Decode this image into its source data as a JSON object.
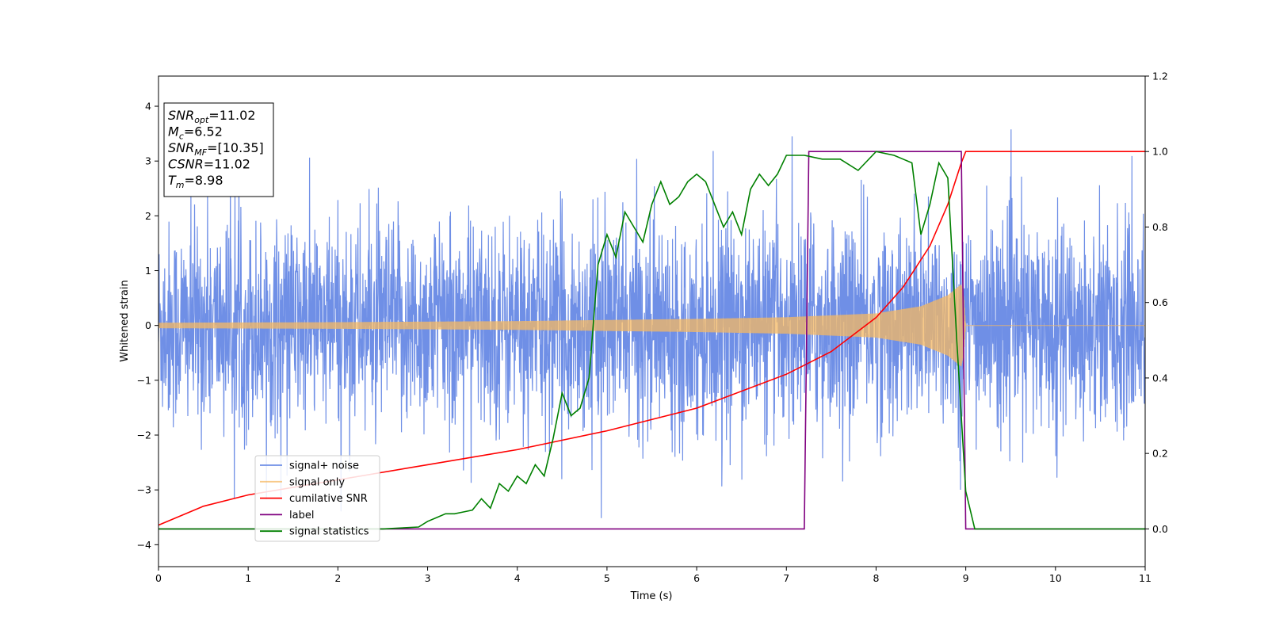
{
  "chart_data": {
    "type": "line",
    "title": "",
    "xlabel": "Time (s)",
    "ylabel": "Whitened strain",
    "xlim": [
      0,
      11
    ],
    "ylim_left": [
      -4.4,
      4.55
    ],
    "ylim_right": [
      -0.1,
      1.2
    ],
    "x_ticks": [
      "0",
      "1",
      "2",
      "3",
      "4",
      "5",
      "6",
      "7",
      "8",
      "9",
      "10",
      "11"
    ],
    "y_left_ticks": [
      "−4",
      "−3",
      "−2",
      "−1",
      "0",
      "1",
      "2",
      "3",
      "4"
    ],
    "y_right_ticks": [
      "0.0",
      "0.2",
      "0.4",
      "0.6",
      "0.8",
      "1.0",
      "1.2"
    ],
    "grid": false,
    "legend_position": "lower-left",
    "info_box": [
      {
        "base": "SNR",
        "sub": "opt",
        "value": "=11.02"
      },
      {
        "base": "M",
        "sub": "c",
        "value": "=6.52"
      },
      {
        "base": "SNR",
        "sub": "MF",
        "value": "=[10.35]"
      },
      {
        "base": "CSNR",
        "sub": "",
        "value": "=11.02"
      },
      {
        "base": "T",
        "sub": "m",
        "value": "=8.98"
      }
    ],
    "series": [
      {
        "name": "signal+ noise",
        "axis": "left",
        "color": "#6f8fe6",
        "kind": "noise",
        "sigma": 1.1,
        "range": [
          -4.0,
          4.15
        ]
      },
      {
        "name": "signal only",
        "axis": "left",
        "color": "#f5b862",
        "kind": "chirp",
        "envelope": {
          "x": [
            0,
            2,
            4,
            6,
            7,
            8,
            8.5,
            8.8,
            8.95,
            8.98,
            9.0,
            11
          ],
          "amplitude": [
            0.05,
            0.06,
            0.08,
            0.12,
            0.15,
            0.22,
            0.35,
            0.55,
            0.75,
            0.5,
            0,
            0
          ]
        }
      },
      {
        "name": "cumilative SNR",
        "axis": "right",
        "color": "#ff0000",
        "x": [
          0,
          0.5,
          1,
          2,
          3,
          4,
          5,
          6,
          7,
          7.5,
          8,
          8.3,
          8.6,
          8.8,
          8.95,
          9.0,
          11
        ],
        "y": [
          0.01,
          0.06,
          0.09,
          0.13,
          0.17,
          0.21,
          0.26,
          0.32,
          0.41,
          0.47,
          0.56,
          0.64,
          0.75,
          0.86,
          0.97,
          1.0,
          1.0
        ]
      },
      {
        "name": "label",
        "axis": "right",
        "color": "#800080",
        "x": [
          0,
          7.2,
          7.25,
          8.95,
          9.0,
          11
        ],
        "y": [
          0,
          0,
          1,
          1,
          0,
          0
        ]
      },
      {
        "name": "signal statistics",
        "axis": "right",
        "color": "#008000",
        "x": [
          0,
          1,
          2,
          2.5,
          2.9,
          3.0,
          3.1,
          3.2,
          3.3,
          3.4,
          3.5,
          3.6,
          3.7,
          3.8,
          3.9,
          4.0,
          4.1,
          4.2,
          4.3,
          4.4,
          4.5,
          4.6,
          4.7,
          4.8,
          4.85,
          4.9,
          5.0,
          5.1,
          5.2,
          5.3,
          5.4,
          5.5,
          5.6,
          5.7,
          5.8,
          5.9,
          6.0,
          6.1,
          6.2,
          6.3,
          6.4,
          6.5,
          6.6,
          6.7,
          6.8,
          6.9,
          7.0,
          7.2,
          7.4,
          7.6,
          7.8,
          8.0,
          8.2,
          8.4,
          8.5,
          8.6,
          8.7,
          8.8,
          8.9,
          9.0,
          9.05,
          9.1,
          9.3,
          11
        ],
        "y": [
          0.0,
          0.0,
          0.0,
          0.0,
          0.005,
          0.02,
          0.03,
          0.04,
          0.04,
          0.045,
          0.05,
          0.08,
          0.055,
          0.12,
          0.1,
          0.14,
          0.12,
          0.17,
          0.14,
          0.24,
          0.36,
          0.3,
          0.32,
          0.4,
          0.55,
          0.7,
          0.78,
          0.72,
          0.84,
          0.8,
          0.76,
          0.86,
          0.92,
          0.86,
          0.88,
          0.92,
          0.94,
          0.92,
          0.86,
          0.8,
          0.84,
          0.78,
          0.9,
          0.94,
          0.91,
          0.94,
          0.99,
          0.99,
          0.98,
          0.98,
          0.95,
          1.0,
          0.99,
          0.97,
          0.78,
          0.86,
          0.97,
          0.93,
          0.5,
          0.1,
          0.05,
          0.0,
          0.0,
          0.0
        ]
      }
    ]
  }
}
